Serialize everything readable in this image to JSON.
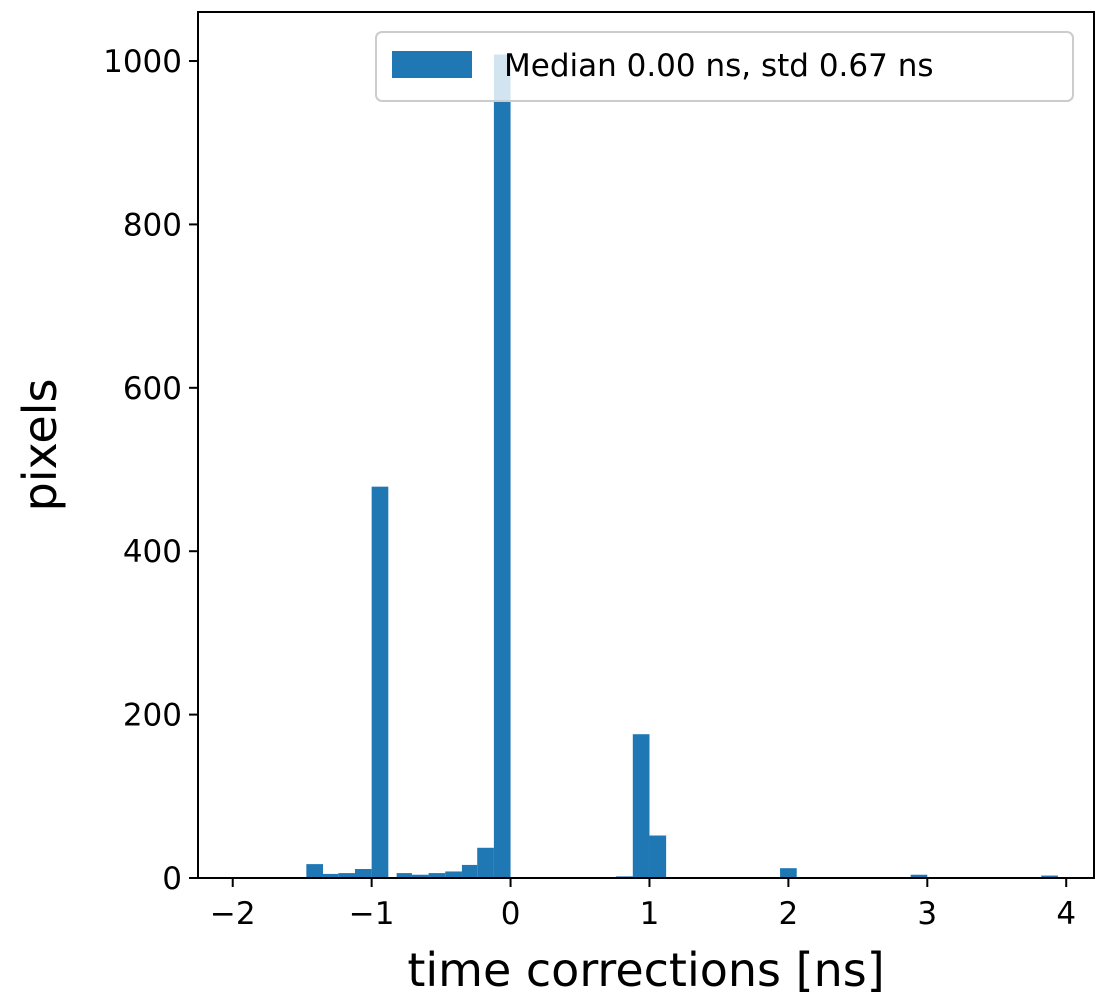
{
  "chart_data": {
    "type": "bar",
    "title": "",
    "xlabel": "time corrections [ns]",
    "ylabel": "pixels",
    "xlim": [
      -2.25,
      4.2
    ],
    "ylim": [
      0,
      1060
    ],
    "xticks": [
      -2,
      -1,
      0,
      1,
      2,
      3,
      4
    ],
    "xtick_labels": [
      "−2",
      "−1",
      "0",
      "1",
      "2",
      "3",
      "4"
    ],
    "yticks": [
      0,
      200,
      400,
      600,
      800,
      1000
    ],
    "ytick_labels": [
      "0",
      "200",
      "400",
      "600",
      "800",
      "1000"
    ],
    "grid": false,
    "legend_position": "upper right",
    "bin_width": 0.1176,
    "series": [
      {
        "name": "Median 0.00 ns, std 0.67 ns",
        "color": "#1f77b4",
        "bins": [
          {
            "x0": -1.94,
            "x1": -1.82,
            "count": 1
          },
          {
            "x0": -1.82,
            "x1": -1.7,
            "count": 1
          },
          {
            "x0": -1.47,
            "x1": -1.35,
            "count": 17
          },
          {
            "x0": -1.35,
            "x1": -1.24,
            "count": 5
          },
          {
            "x0": -1.24,
            "x1": -1.12,
            "count": 6
          },
          {
            "x0": -1.12,
            "x1": -1.0,
            "count": 11
          },
          {
            "x0": -1.0,
            "x1": -0.88,
            "count": 479
          },
          {
            "x0": -0.82,
            "x1": -0.71,
            "count": 6
          },
          {
            "x0": -0.71,
            "x1": -0.59,
            "count": 4
          },
          {
            "x0": -0.59,
            "x1": -0.47,
            "count": 6
          },
          {
            "x0": -0.47,
            "x1": -0.35,
            "count": 8
          },
          {
            "x0": -0.35,
            "x1": -0.24,
            "count": 16
          },
          {
            "x0": -0.24,
            "x1": -0.12,
            "count": 37
          },
          {
            "x0": -0.12,
            "x1": 0.0,
            "count": 1008
          },
          {
            "x0": 0.53,
            "x1": 0.65,
            "count": 1
          },
          {
            "x0": 0.76,
            "x1": 0.88,
            "count": 2
          },
          {
            "x0": 0.88,
            "x1": 1.0,
            "count": 176
          },
          {
            "x0": 1.0,
            "x1": 1.12,
            "count": 52
          },
          {
            "x0": 1.94,
            "x1": 2.06,
            "count": 12
          },
          {
            "x0": 2.88,
            "x1": 3.0,
            "count": 4
          },
          {
            "x0": 3.82,
            "x1": 3.94,
            "count": 3
          }
        ]
      }
    ]
  }
}
